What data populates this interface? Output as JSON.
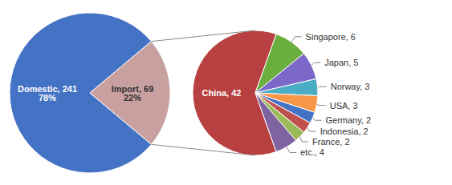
{
  "chart_data": [
    {
      "type": "pie",
      "categories": [
        "Domestic, 241\n78%",
        "Import, 69\n22%"
      ],
      "values": [
        241,
        69
      ],
      "colors": [
        "#4472C4",
        "#C9A0A0"
      ]
    },
    {
      "type": "pie",
      "categories": [
        "China, 42",
        "Singapore, 6",
        "Japan, 5",
        "Norway, 3",
        "USA, 3",
        "Germany, 2",
        "Indonesia, 2",
        "France, 2",
        "etc., 4"
      ],
      "values": [
        42,
        6,
        5,
        3,
        3,
        2,
        2,
        2,
        4
      ],
      "colors": [
        "#B94040",
        "#6AAF3D",
        "#7B68C8",
        "#4BACC6",
        "#F79646",
        "#4472C4",
        "#C0504D",
        "#9BBB59",
        "#8064A2"
      ]
    }
  ]
}
